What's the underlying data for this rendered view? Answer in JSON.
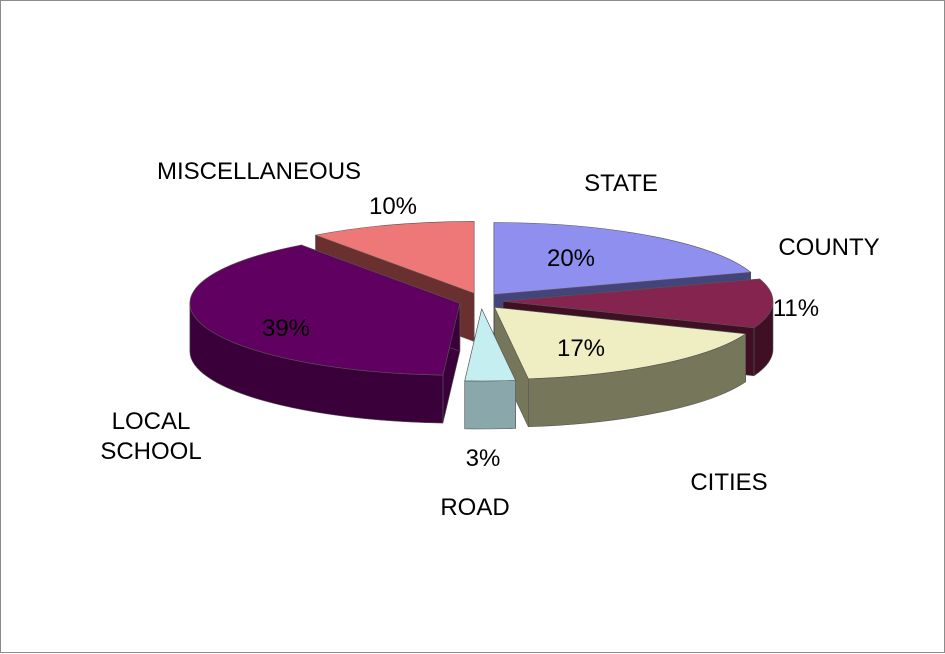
{
  "chart_data": {
    "type": "pie",
    "title": "",
    "style": "3d-exploded",
    "slices": [
      {
        "label": "STATE",
        "value": 20,
        "value_label": "20%",
        "color": "#8F8FF0",
        "side_color": "#44447a"
      },
      {
        "label": "COUNTY",
        "value": 11,
        "value_label": "11%",
        "color": "#85244F",
        "side_color": "#3f0f24"
      },
      {
        "label": "CITIES",
        "value": 17,
        "value_label": "17%",
        "color": "#EEEEC2",
        "side_color": "#76765a"
      },
      {
        "label": "ROAD",
        "value": 3,
        "value_label": "3%",
        "color": "#C4EEF0",
        "side_color": "#8AA8AB"
      },
      {
        "label": "LOCAL\nSCHOOL",
        "value": 39,
        "value_label": "39%",
        "color": "#600060",
        "side_color": "#3a003a"
      },
      {
        "label": "MISCELLANEOUS",
        "value": 10,
        "value_label": "10%",
        "color": "#EE7878",
        "side_color": "#6a2f2f"
      }
    ]
  }
}
